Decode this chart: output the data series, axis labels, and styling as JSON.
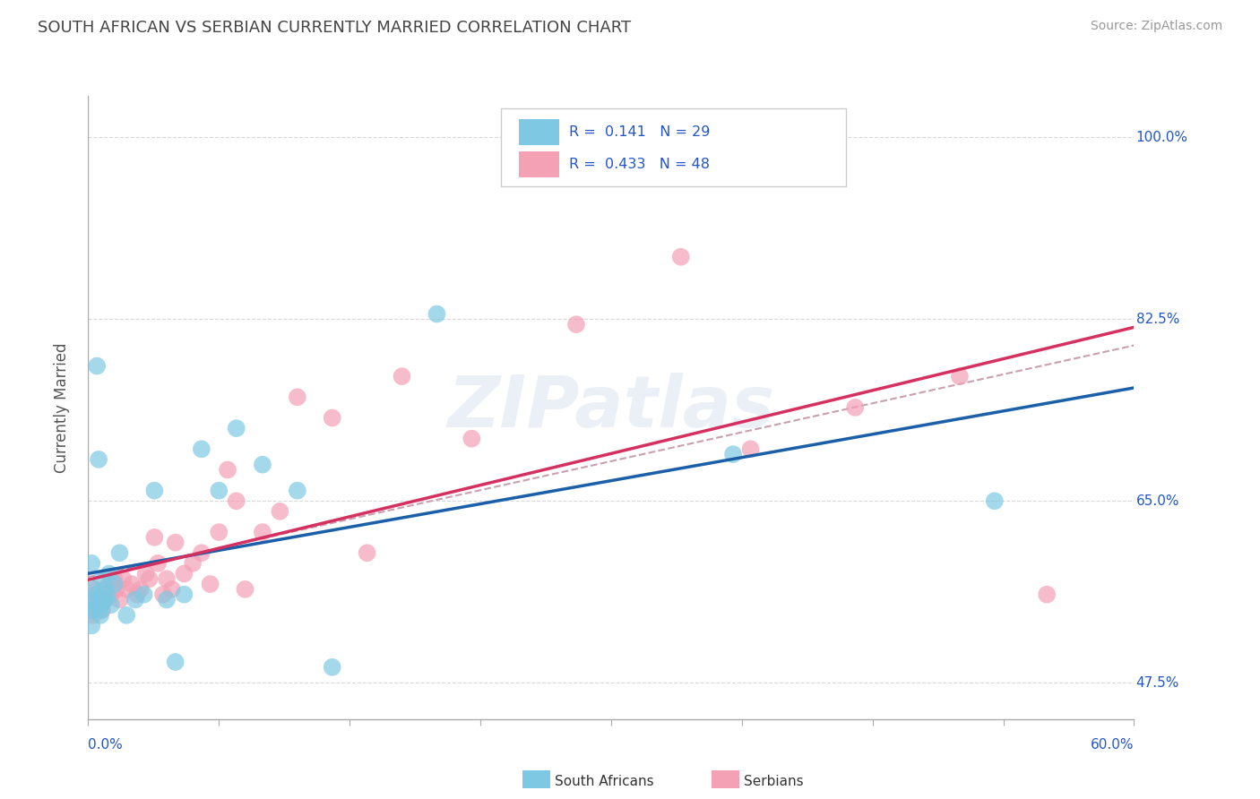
{
  "title": "SOUTH AFRICAN VS SERBIAN CURRENTLY MARRIED CORRELATION CHART",
  "source": "Source: ZipAtlas.com",
  "ylabel": "Currently Married",
  "xlim": [
    0.0,
    0.6
  ],
  "ylim": [
    0.44,
    1.04
  ],
  "ytick_all": [
    0.475,
    0.5,
    0.525,
    0.55,
    0.575,
    0.6,
    0.625,
    0.65,
    0.675,
    0.7,
    0.725,
    0.75,
    0.775,
    0.8,
    0.825,
    0.85,
    0.875,
    0.9,
    0.925,
    0.95,
    0.975,
    1.0
  ],
  "ytick_labeled": {
    "0.475": "47.5%",
    "0.65": "65.0%",
    "0.825": "82.5%",
    "1.0": "100.0%"
  },
  "xtick_positions": [
    0.0,
    0.075,
    0.15,
    0.225,
    0.3,
    0.375,
    0.45,
    0.525,
    0.6
  ],
  "blue_color": "#7ec8e3",
  "pink_color": "#f4a0b5",
  "blue_line_color": "#1a5fa8",
  "pink_line_color": "#d43060",
  "gray_dash_color": "#c8a0b0",
  "legend_text_color": "#2255cc",
  "text_color": "#555555",
  "title_color": "#444444",
  "grid_color": "#d8d8d8",
  "axis_color": "#aaaaaa",
  "watermark_color": "lightsteelblue",
  "watermark_alpha": 0.25,
  "legend1_r": "0.141",
  "legend1_n": "29",
  "legend2_r": "0.433",
  "legend2_n": "48",
  "label1": "South Africans",
  "label2": "Serbians",
  "sa_x": [
    0.002,
    0.003,
    0.004,
    0.005,
    0.005,
    0.006,
    0.007,
    0.008,
    0.009,
    0.01,
    0.012,
    0.015,
    0.018,
    0.022,
    0.027,
    0.032,
    0.038,
    0.045,
    0.055,
    0.065,
    0.075,
    0.085,
    0.1,
    0.12,
    0.2,
    0.37,
    0.52,
    0.05,
    0.14
  ],
  "sa_y": [
    0.59,
    0.565,
    0.555,
    0.78,
    0.56,
    0.69,
    0.54,
    0.575,
    0.555,
    0.565,
    0.58,
    0.57,
    0.6,
    0.54,
    0.555,
    0.56,
    0.66,
    0.555,
    0.56,
    0.7,
    0.66,
    0.72,
    0.685,
    0.66,
    0.83,
    0.695,
    0.65,
    0.495,
    0.49
  ],
  "se_x": [
    0.002,
    0.003,
    0.004,
    0.005,
    0.006,
    0.007,
    0.008,
    0.009,
    0.01,
    0.012,
    0.013,
    0.015,
    0.016,
    0.018,
    0.02,
    0.022,
    0.025,
    0.028,
    0.03,
    0.033,
    0.035,
    0.038,
    0.04,
    0.043,
    0.045,
    0.048,
    0.05,
    0.055,
    0.06,
    0.065,
    0.07,
    0.075,
    0.08,
    0.085,
    0.09,
    0.1,
    0.11,
    0.12,
    0.14,
    0.16,
    0.18,
    0.22,
    0.28,
    0.34,
    0.38,
    0.44,
    0.5,
    0.55
  ],
  "se_y": [
    0.545,
    0.54,
    0.565,
    0.555,
    0.56,
    0.55,
    0.545,
    0.555,
    0.56,
    0.57,
    0.56,
    0.575,
    0.565,
    0.555,
    0.575,
    0.565,
    0.57,
    0.56,
    0.565,
    0.58,
    0.575,
    0.615,
    0.59,
    0.56,
    0.575,
    0.565,
    0.61,
    0.58,
    0.59,
    0.6,
    0.57,
    0.62,
    0.68,
    0.65,
    0.565,
    0.62,
    0.64,
    0.75,
    0.73,
    0.6,
    0.77,
    0.71,
    0.82,
    0.885,
    0.7,
    0.74,
    0.77,
    0.56
  ],
  "sa_x_extra": [
    0.002,
    0.003,
    0.004,
    0.005,
    0.007,
    0.009,
    0.01,
    0.011,
    0.013
  ],
  "sa_y_extra": [
    0.53,
    0.545,
    0.545,
    0.55,
    0.545,
    0.555,
    0.555,
    0.56,
    0.55
  ]
}
